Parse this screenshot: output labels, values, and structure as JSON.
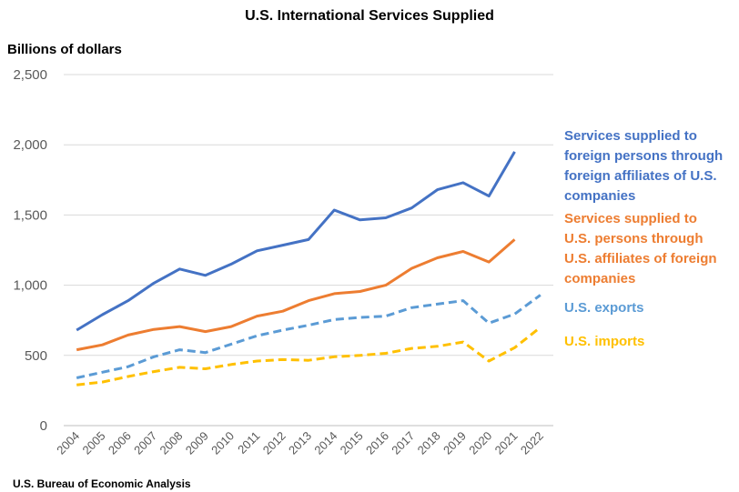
{
  "chart_data": {
    "type": "line",
    "title": "U.S. International Services Supplied",
    "ylabel": "Billions of dollars",
    "source": "U.S. Bureau of Economic Analysis",
    "ylim": [
      0,
      2500
    ],
    "yticks": [
      0,
      500,
      1000,
      1500,
      2000,
      2500
    ],
    "ytick_labels": [
      "0",
      "500",
      "1,000",
      "1,500",
      "2,000",
      "2,500"
    ],
    "categories": [
      "2004",
      "2005",
      "2006",
      "2007",
      "2008",
      "2009",
      "2010",
      "2011",
      "2012",
      "2013",
      "2014",
      "2015",
      "2016",
      "2017",
      "2018",
      "2019",
      "2020",
      "2021",
      "2022"
    ],
    "grid": true,
    "legend_placement": "right",
    "series": [
      {
        "name": "Services supplied to foreign persons through foreign affiliates of U.S. companies",
        "legend_lines": [
          "Services supplied to",
          "foreign persons through",
          "foreign affiliates of U.S.",
          "companies"
        ],
        "color": "#4472C4",
        "style": "solid",
        "values": [
          680,
          790,
          890,
          1015,
          1115,
          1070,
          1150,
          1245,
          1285,
          1325,
          1535,
          1465,
          1480,
          1550,
          1680,
          1730,
          1635,
          1950,
          null
        ]
      },
      {
        "name": "Services supplied to U.S. persons through U.S. affiliates of foreign companies",
        "legend_lines": [
          "Services supplied to",
          "U.S. persons through",
          "U.S. affiliates of foreign",
          "companies"
        ],
        "color": "#ED7D31",
        "style": "solid",
        "values": [
          540,
          575,
          645,
          685,
          705,
          670,
          705,
          780,
          815,
          890,
          940,
          955,
          1000,
          1120,
          1195,
          1240,
          1165,
          1325,
          null
        ]
      },
      {
        "name": "U.S. exports",
        "legend_lines": [
          "U.S. exports"
        ],
        "color": "#5B9BD5",
        "style": "dashed",
        "values": [
          340,
          380,
          420,
          490,
          540,
          520,
          580,
          640,
          680,
          715,
          755,
          770,
          780,
          840,
          865,
          890,
          730,
          795,
          930
        ]
      },
      {
        "name": "U.S. imports",
        "legend_lines": [
          "U.S. imports"
        ],
        "color": "#FFC000",
        "style": "dashed",
        "values": [
          290,
          310,
          350,
          385,
          415,
          405,
          435,
          460,
          470,
          465,
          490,
          500,
          515,
          550,
          565,
          595,
          460,
          555,
          700
        ]
      }
    ]
  }
}
